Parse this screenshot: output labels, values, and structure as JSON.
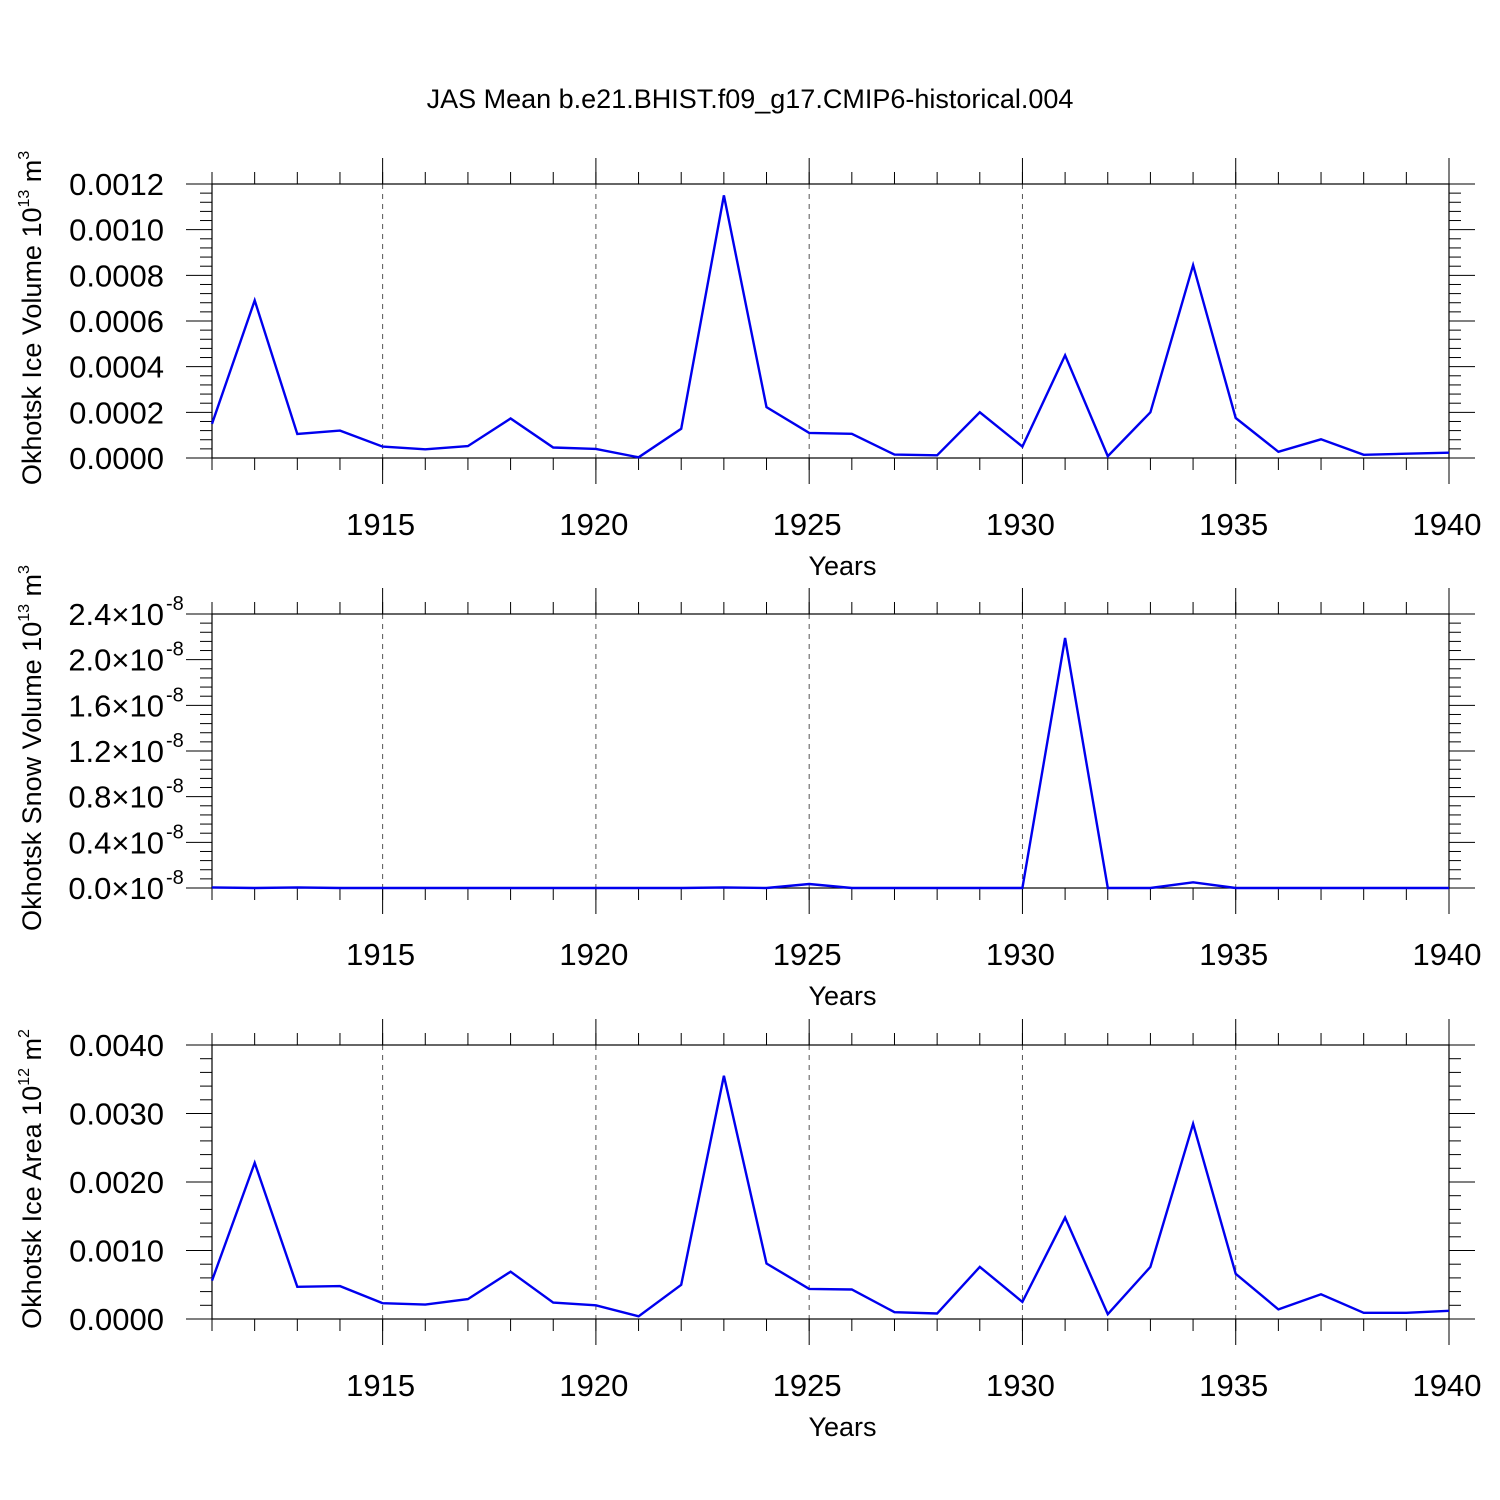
{
  "figure": {
    "title": "JAS Mean b.e21.BHIST.f09_g17.CMIP6-historical.004",
    "line_color": "#0000ee"
  },
  "chart_data": [
    {
      "type": "line",
      "ylabel": "Okhotsk Ice Volume 10",
      "ylabel_exp": "13",
      "ylabel_unit": " m",
      "ylabel_unit_exp": "3",
      "xlabel": "Years",
      "xlim": [
        1911,
        1940
      ],
      "ylim": [
        0,
        0.0012
      ],
      "xticks": [
        1915,
        1920,
        1925,
        1930,
        1935,
        1940
      ],
      "yticks": [
        0,
        0.0002,
        0.0004,
        0.0006,
        0.0008,
        0.001,
        0.0012
      ],
      "ytick_labels": [
        "0.0000",
        "0.0002",
        "0.0004",
        "0.0006",
        "0.0008",
        "0.0010",
        "0.0012"
      ],
      "ytick_exp": "",
      "grid": "vertical dashed at major x ticks",
      "x": [
        1911,
        1912,
        1913,
        1914,
        1915,
        1916,
        1917,
        1918,
        1919,
        1920,
        1921,
        1922,
        1923,
        1924,
        1925,
        1926,
        1927,
        1928,
        1929,
        1930,
        1931,
        1932,
        1933,
        1934,
        1935,
        1936,
        1937,
        1938,
        1939,
        1940
      ],
      "y": [
        0.00015,
        0.00069,
        0.000105,
        0.00012,
        5e-05,
        3.8e-05,
        5.2e-05,
        0.000173,
        4.6e-05,
        4e-05,
        3e-06,
        0.000128,
        0.00115,
        0.000223,
        0.00011,
        0.000106,
        1.5e-05,
        1.2e-05,
        0.0002,
        5e-05,
        0.00045,
        8e-06,
        0.0002,
        0.000845,
        0.000175,
        2.7e-05,
        8.2e-05,
        1.4e-05,
        1.9e-05,
        2.3e-05
      ]
    },
    {
      "type": "line",
      "ylabel": "Okhotsk Snow Volume 10",
      "ylabel_exp": "13",
      "ylabel_unit": " m",
      "ylabel_unit_exp": "3",
      "xlabel": "Years",
      "xlim": [
        1911,
        1940
      ],
      "ylim": [
        0,
        2.4e-08
      ],
      "xticks": [
        1915,
        1920,
        1925,
        1930,
        1935,
        1940
      ],
      "yticks": [
        0,
        4e-09,
        8e-09,
        1.2e-08,
        1.6e-08,
        2e-08,
        2.4e-08
      ],
      "ytick_labels": [
        "0.0×10",
        "0.4×10",
        "0.8×10",
        "1.2×10",
        "1.6×10",
        "2.0×10",
        "2.4×10"
      ],
      "ytick_exp": "-8",
      "grid": "vertical dashed at major x ticks",
      "x": [
        1911,
        1912,
        1913,
        1914,
        1915,
        1916,
        1917,
        1918,
        1919,
        1920,
        1921,
        1922,
        1923,
        1924,
        1925,
        1926,
        1927,
        1928,
        1929,
        1930,
        1931,
        1932,
        1933,
        1934,
        1935,
        1936,
        1937,
        1938,
        1939,
        1940
      ],
      "y": [
        5e-11,
        0,
        5e-11,
        0,
        0,
        0,
        0,
        0,
        0,
        0,
        0,
        0,
        5e-11,
        0,
        3.5e-10,
        0,
        0,
        0,
        0,
        0,
        2.19e-08,
        0,
        0,
        5e-10,
        0,
        0,
        0,
        0,
        0,
        0
      ]
    },
    {
      "type": "line",
      "ylabel": "Okhotsk Ice Area 10",
      "ylabel_exp": "12",
      "ylabel_unit": " m",
      "ylabel_unit_exp": "2",
      "xlabel": "Years",
      "xlim": [
        1911,
        1940
      ],
      "ylim": [
        0,
        0.004
      ],
      "xticks": [
        1915,
        1920,
        1925,
        1930,
        1935,
        1940
      ],
      "yticks": [
        0,
        0.001,
        0.002,
        0.003,
        0.004
      ],
      "ytick_labels": [
        "0.0000",
        "0.0010",
        "0.0020",
        "0.0030",
        "0.0040"
      ],
      "ytick_exp": "",
      "grid": "vertical dashed at major x ticks",
      "x": [
        1911,
        1912,
        1913,
        1914,
        1915,
        1916,
        1917,
        1918,
        1919,
        1920,
        1921,
        1922,
        1923,
        1924,
        1925,
        1926,
        1927,
        1928,
        1929,
        1930,
        1931,
        1932,
        1933,
        1934,
        1935,
        1936,
        1937,
        1938,
        1939,
        1940
      ],
      "y": [
        0.00056,
        0.00228,
        0.00047,
        0.00048,
        0.00023,
        0.00021,
        0.00029,
        0.00069,
        0.00024,
        0.0002,
        4e-05,
        0.0005,
        0.00355,
        0.00081,
        0.00044,
        0.00043,
        0.0001,
        8e-05,
        0.00076,
        0.00025,
        0.00148,
        7e-05,
        0.00076,
        0.00285,
        0.00066,
        0.00014,
        0.00036,
        9e-05,
        9e-05,
        0.00012
      ]
    }
  ]
}
